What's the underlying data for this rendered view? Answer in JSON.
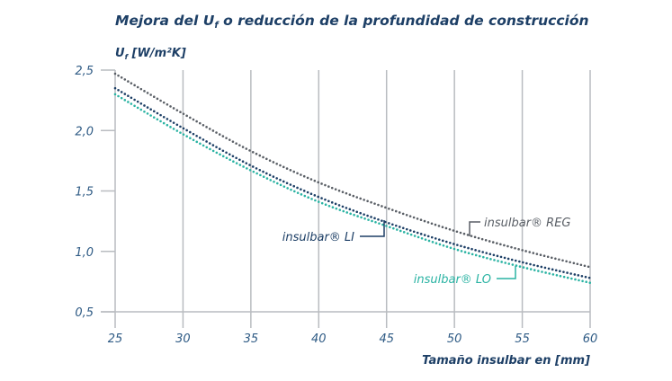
{
  "chart_data": {
    "type": "line",
    "title": "Mejora del Uf o reducción de la profundidad de construcción",
    "title_parts": {
      "before": "Mejora del U",
      "sub": "f",
      "after": " o reducción de la profundidad de construcción"
    },
    "ylabel": "Uf [W/m²K]",
    "ylabel_parts": {
      "main": "U",
      "sub": "f",
      "after": " [W/m²K]"
    },
    "xlabel": "Tamaño insulbar en [mm]",
    "xlim": [
      25,
      60
    ],
    "ylim": [
      0.5,
      2.5
    ],
    "x_ticks": [
      "25",
      "30",
      "35",
      "40",
      "45",
      "50",
      "55",
      "60"
    ],
    "y_ticks": [
      "0,5",
      "1,0",
      "1,5",
      "2,0",
      "2,5"
    ],
    "grid": "vertical",
    "x": [
      25,
      30,
      35,
      40,
      45,
      50,
      55,
      60
    ],
    "series": [
      {
        "name": "insulbar® REG",
        "color": "#5a5f66",
        "values": [
          2.47,
          2.14,
          1.83,
          1.57,
          1.36,
          1.17,
          1.01,
          0.87
        ]
      },
      {
        "name": "insulbar® LI",
        "color": "#1d3f66",
        "values": [
          2.35,
          2.02,
          1.71,
          1.45,
          1.24,
          1.06,
          0.91,
          0.78
        ]
      },
      {
        "name": "insulbar® LO",
        "color": "#2ab3a3",
        "values": [
          2.3,
          1.97,
          1.67,
          1.41,
          1.21,
          1.02,
          0.87,
          0.74
        ]
      }
    ]
  }
}
